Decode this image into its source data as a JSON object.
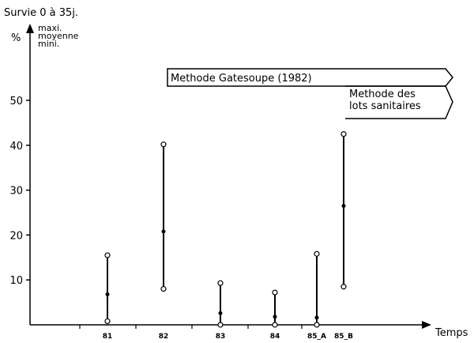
{
  "chart_data": {
    "type": "range",
    "title": "Survie 0 à 35j.",
    "ylabel": "%",
    "xlabel": "Temps",
    "legend": [
      "maxi.",
      "moyenne",
      "mini."
    ],
    "ylim": [
      0,
      60
    ],
    "yticks": [
      10,
      20,
      30,
      40,
      50
    ],
    "categories": [
      "81",
      "82",
      "83",
      "84",
      "85_A",
      "85_B"
    ],
    "series": {
      "max": [
        15.5,
        40.2,
        9.3,
        7.2,
        15.8,
        42.5
      ],
      "mean": [
        6.8,
        20.8,
        2.6,
        1.8,
        1.6,
        26.5
      ],
      "min": [
        0.8,
        8.0,
        0.0,
        0.0,
        0.0,
        8.5
      ]
    },
    "methods": [
      {
        "line1": "Methode   Gatesoupe (1982)",
        "line2": ""
      },
      {
        "line1": "Methode des",
        "line2": "lots sanitaires"
      }
    ]
  }
}
